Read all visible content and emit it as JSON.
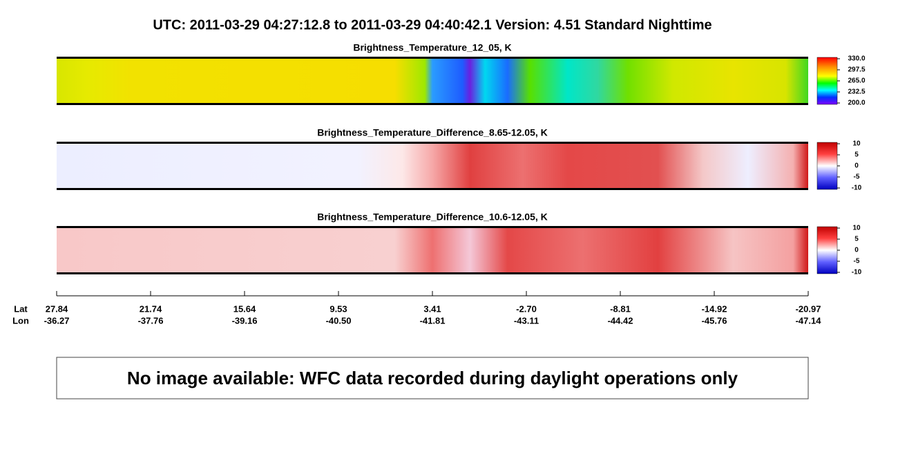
{
  "header": {
    "title": "UTC:  2011-03-29   04:27:12.8  to  2011-03-29   04:40:42.1    Version: 4.51  Standard Nighttime"
  },
  "panels": [
    {
      "title": "Brightness_Temperature_12_05, K",
      "colorbar_ticks": [
        "330.0",
        "297.5",
        "265.0",
        "232.5",
        "200.0"
      ]
    },
    {
      "title": "Brightness_Temperature_Difference_8.65-12.05, K",
      "colorbar_ticks": [
        "10",
        "5",
        "0",
        "-5",
        "-10"
      ]
    },
    {
      "title": "Brightness_Temperature_Difference_10.6-12.05, K",
      "colorbar_ticks": [
        "10",
        "5",
        "0",
        "-5",
        "-10"
      ]
    }
  ],
  "axis": {
    "lat_label": "Lat",
    "lon_label": "Lon",
    "lat": [
      "27.84",
      "21.74",
      "15.64",
      "9.53",
      "3.41",
      "-2.70",
      "-8.81",
      "-14.92",
      "-20.97"
    ],
    "lon": [
      "-36.27",
      "-37.76",
      "-39.16",
      "-40.50",
      "-41.81",
      "-43.11",
      "-44.42",
      "-45.76",
      "-47.14"
    ]
  },
  "notice": {
    "text": "No image available: WFC data recorded during daylight operations only"
  }
}
